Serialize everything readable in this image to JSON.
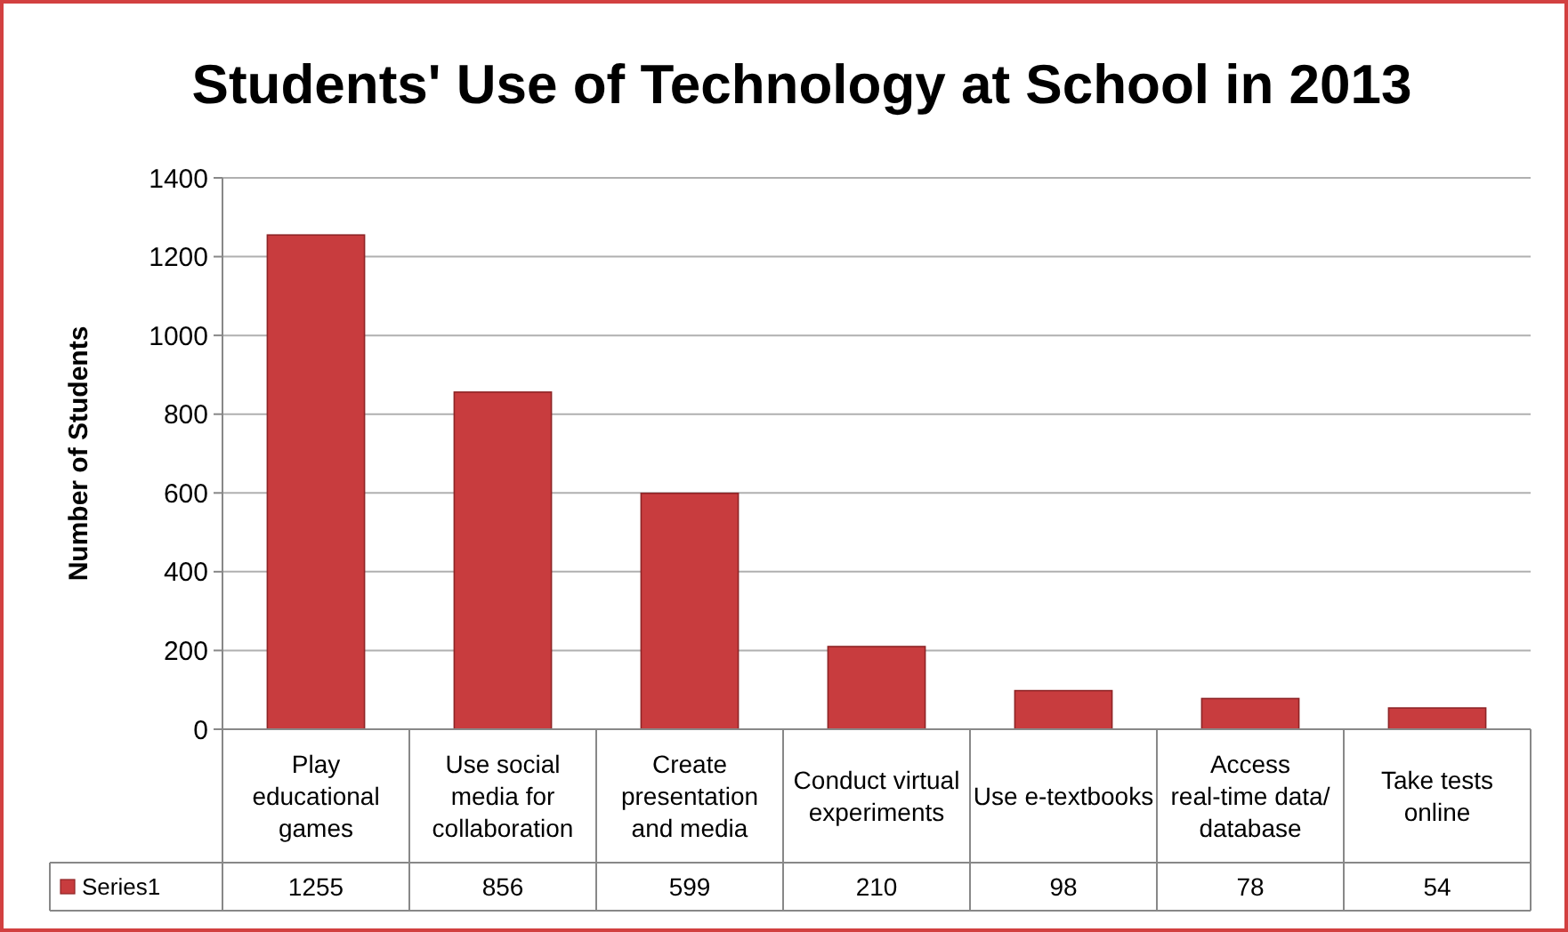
{
  "chart_data": {
    "type": "bar",
    "title": "Students' Use of Technology at School in 2013",
    "ylabel": "Number of Students",
    "categories": [
      "Play educational games",
      "Use social media for collaboration",
      "Create presentation and media",
      "Conduct virtual experiments",
      "Use e-textbooks",
      "Access real-time data/ database",
      "Take tests online"
    ],
    "series": [
      {
        "name": "Series1",
        "color": "#c83c3e",
        "values": [
          1255,
          856,
          599,
          210,
          98,
          78,
          54
        ]
      }
    ],
    "ylim": [
      0,
      1400
    ],
    "yticks": [
      0,
      200,
      400,
      600,
      800,
      1000,
      1200,
      1400
    ],
    "grid": "y",
    "legend": "bottom",
    "data_labels": true
  }
}
